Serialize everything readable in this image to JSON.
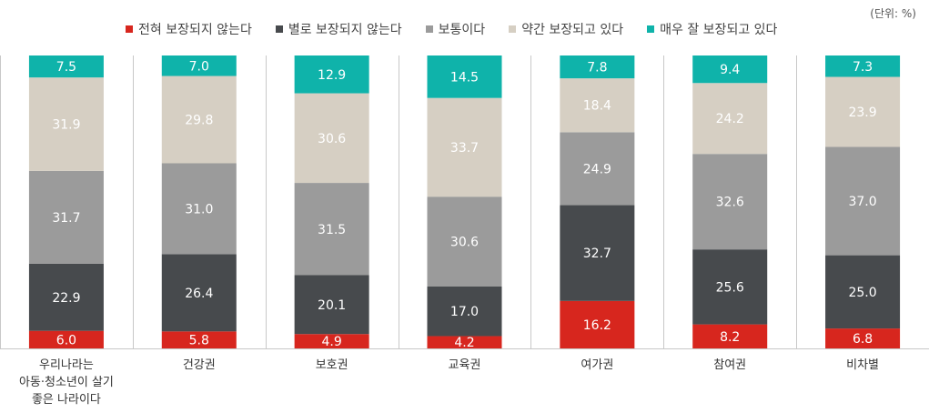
{
  "unit_label": "(단위: %)",
  "chart_data": {
    "type": "bar",
    "stacked": true,
    "categories": [
      [
        "우리나라는",
        "아동·청소년이 살기",
        "좋은 나라이다"
      ],
      [
        "건강권"
      ],
      [
        "보호권"
      ],
      [
        "교육권"
      ],
      [
        "여가권"
      ],
      [
        "참여권"
      ],
      [
        "비차별"
      ]
    ],
    "series": [
      {
        "name": "전혀 보장되지 않는다",
        "color": "#d7261e",
        "values": [
          6.0,
          5.8,
          4.9,
          4.2,
          16.2,
          8.2,
          6.8
        ]
      },
      {
        "name": "별로 보장되지 않는다",
        "color": "#474a4d",
        "values": [
          22.9,
          26.4,
          20.1,
          17.0,
          32.7,
          25.6,
          25.0
        ]
      },
      {
        "name": "보통이다",
        "color": "#9b9b9b",
        "values": [
          31.7,
          31.0,
          31.5,
          30.6,
          24.9,
          32.6,
          37.0
        ]
      },
      {
        "name": "약간 보장되고 있다",
        "color": "#d6cfc3",
        "values": [
          31.9,
          29.8,
          30.6,
          33.7,
          18.4,
          24.2,
          23.9
        ]
      },
      {
        "name": "매우 잘 보장되고 있다",
        "color": "#0fb3aa",
        "values": [
          7.5,
          7.0,
          12.9,
          14.5,
          7.8,
          9.4,
          7.3
        ]
      }
    ],
    "ylim": [
      0,
      100
    ],
    "grid": false,
    "legend_position": "top"
  }
}
